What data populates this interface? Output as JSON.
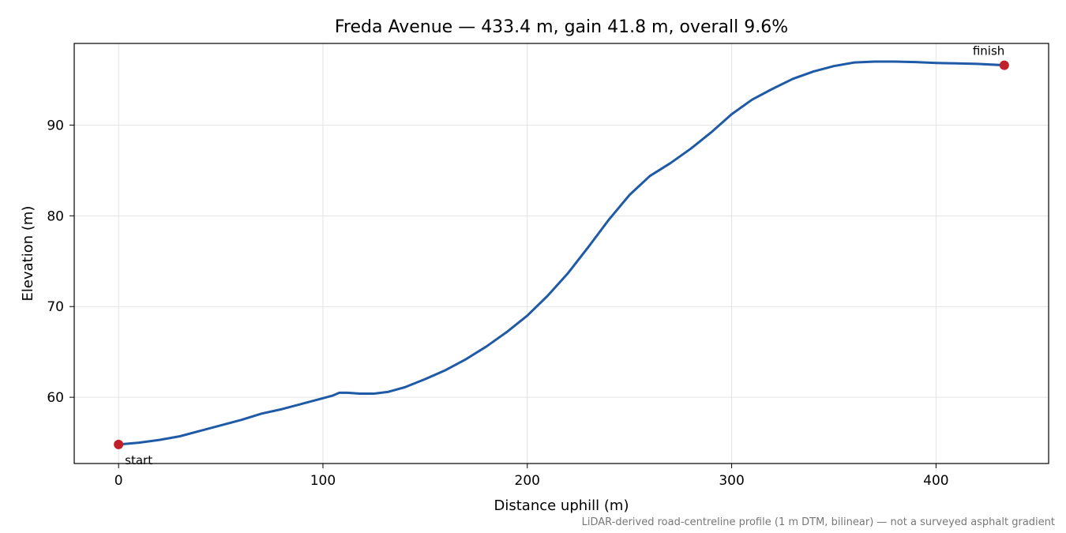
{
  "chart_data": {
    "type": "line",
    "title": "Freda Avenue — 433.4 m, gain 41.8 m, overall 9.6%",
    "xlabel": "Distance uphill (m)",
    "ylabel": "Elevation (m)",
    "xlim": [
      -21.7,
      455.1
    ],
    "ylim": [
      52.7,
      99.0
    ],
    "xticks": [
      0,
      100,
      200,
      300,
      400
    ],
    "yticks": [
      60,
      70,
      80,
      90
    ],
    "grid": true,
    "series": [
      {
        "color": "#1f5aa6",
        "x": [
          0,
          10,
          20,
          30,
          40,
          50,
          60,
          70,
          80,
          90,
          100,
          105,
          108,
          112,
          118,
          125,
          132,
          140,
          150,
          160,
          170,
          180,
          190,
          200,
          210,
          220,
          230,
          240,
          250,
          260,
          270,
          280,
          290,
          300,
          310,
          320,
          330,
          340,
          350,
          360,
          370,
          380,
          390,
          400,
          410,
          420,
          433.4
        ],
        "y": [
          54.8,
          55.0,
          55.3,
          55.7,
          56.3,
          56.9,
          57.5,
          58.2,
          58.7,
          59.3,
          59.9,
          60.2,
          60.5,
          60.5,
          60.4,
          60.4,
          60.6,
          61.1,
          62.0,
          63.0,
          64.2,
          65.6,
          67.2,
          69.0,
          71.2,
          73.7,
          76.6,
          79.6,
          82.3,
          84.4,
          85.8,
          87.4,
          89.2,
          91.2,
          92.8,
          94.0,
          95.1,
          95.9,
          96.5,
          96.9,
          97.0,
          97.0,
          96.95,
          96.85,
          96.8,
          96.75,
          96.6
        ]
      }
    ],
    "markers": [
      {
        "x": 0,
        "y": 54.8,
        "color": "#c0202a",
        "label": "start"
      },
      {
        "x": 433.4,
        "y": 96.6,
        "color": "#c0202a",
        "label": "finish"
      }
    ],
    "footnote": "LiDAR-derived road-centreline profile (1 m DTM, bilinear) — not a surveyed asphalt gradient"
  }
}
